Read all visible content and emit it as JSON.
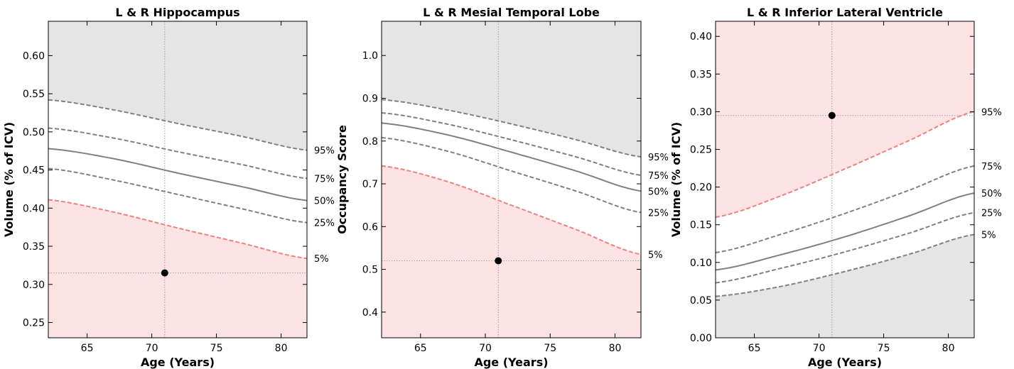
{
  "chart_data": [
    {
      "type": "line",
      "title": "L & R Hippocampus",
      "xlabel": "Age (Years)",
      "ylabel": "Volume (% of ICV)",
      "xlim": [
        62,
        82
      ],
      "ylim": [
        0.23,
        0.645
      ],
      "xticks": [
        "65",
        "70",
        "75",
        "80"
      ],
      "xtick_values": [
        65,
        70,
        75,
        80
      ],
      "yticks": [
        "0.25",
        "0.30",
        "0.35",
        "0.40",
        "0.45",
        "0.50",
        "0.55",
        "0.60"
      ],
      "ytick_values": [
        0.25,
        0.3,
        0.35,
        0.4,
        0.45,
        0.5,
        0.55,
        0.6
      ],
      "x": [
        62,
        67,
        72,
        77,
        82
      ],
      "series": [
        {
          "name": "95%",
          "values": [
            0.542,
            0.529,
            0.511,
            0.494,
            0.476
          ],
          "style": "dashed",
          "color": "#808080"
        },
        {
          "name": "75%",
          "values": [
            0.505,
            0.492,
            0.474,
            0.457,
            0.439
          ],
          "style": "dashed",
          "color": "#808080"
        },
        {
          "name": "50%",
          "values": [
            0.478,
            0.465,
            0.446,
            0.428,
            0.41
          ],
          "style": "solid",
          "color": "#808080"
        },
        {
          "name": "25%",
          "values": [
            0.452,
            0.437,
            0.418,
            0.399,
            0.381
          ],
          "style": "dashed",
          "color": "#808080"
        },
        {
          "name": "5%",
          "values": [
            0.411,
            0.395,
            0.374,
            0.354,
            0.334
          ],
          "style": "dashed",
          "color": "#f08080"
        }
      ],
      "grey_region": "above-95",
      "red_region": "below-5",
      "point": {
        "x": 71,
        "y": 0.315
      },
      "grid": false
    },
    {
      "type": "line",
      "title": "L & R Mesial Temporal Lobe",
      "xlabel": "Age (Years)",
      "ylabel": "Occupancy Score",
      "xlim": [
        62,
        82
      ],
      "ylim": [
        0.34,
        1.08
      ],
      "xticks": [
        "65",
        "70",
        "75",
        "80"
      ],
      "xtick_values": [
        65,
        70,
        75,
        80
      ],
      "yticks": [
        "0.4",
        "0.5",
        "0.6",
        "0.7",
        "0.8",
        "0.9",
        "1.0"
      ],
      "ytick_values": [
        0.4,
        0.5,
        0.6,
        0.7,
        0.8,
        0.9,
        1.0
      ],
      "x": [
        62,
        67,
        72,
        77,
        82
      ],
      "series": [
        {
          "name": "95%",
          "values": [
            0.897,
            0.873,
            0.84,
            0.803,
            0.763
          ],
          "style": "dashed",
          "color": "#808080"
        },
        {
          "name": "75%",
          "values": [
            0.866,
            0.84,
            0.803,
            0.763,
            0.72
          ],
          "style": "dashed",
          "color": "#808080"
        },
        {
          "name": "50%",
          "values": [
            0.842,
            0.815,
            0.774,
            0.73,
            0.683
          ],
          "style": "solid",
          "color": "#808080"
        },
        {
          "name": "25%",
          "values": [
            0.808,
            0.777,
            0.73,
            0.683,
            0.633
          ],
          "style": "dashed",
          "color": "#808080"
        },
        {
          "name": "5%",
          "values": [
            0.742,
            0.706,
            0.65,
            0.593,
            0.535
          ],
          "style": "dashed",
          "color": "#f08080"
        }
      ],
      "grey_region": "above-95",
      "red_region": "below-5",
      "point": {
        "x": 71,
        "y": 0.52
      },
      "grid": false
    },
    {
      "type": "line",
      "title": "L & R Inferior Lateral Ventricle",
      "xlabel": "Age (Years)",
      "ylabel": "Volume (% of ICV)",
      "xlim": [
        62,
        82
      ],
      "ylim": [
        0.0,
        0.42
      ],
      "xticks": [
        "65",
        "70",
        "75",
        "80"
      ],
      "xtick_values": [
        65,
        70,
        75,
        80
      ],
      "yticks": [
        "0.00",
        "0.05",
        "0.10",
        "0.15",
        "0.20",
        "0.25",
        "0.30",
        "0.35",
        "0.40"
      ],
      "ytick_values": [
        0.0,
        0.05,
        0.1,
        0.15,
        0.2,
        0.25,
        0.3,
        0.35,
        0.4
      ],
      "x": [
        62,
        67,
        72,
        77,
        82
      ],
      "series": [
        {
          "name": "95%",
          "values": [
            0.16,
            0.188,
            0.224,
            0.262,
            0.3
          ],
          "style": "dashed",
          "color": "#f08080"
        },
        {
          "name": "75%",
          "values": [
            0.113,
            0.137,
            0.165,
            0.196,
            0.228
          ],
          "style": "dashed",
          "color": "#808080"
        },
        {
          "name": "50%",
          "values": [
            0.09,
            0.11,
            0.134,
            0.162,
            0.192
          ],
          "style": "solid",
          "color": "#808080"
        },
        {
          "name": "25%",
          "values": [
            0.073,
            0.092,
            0.114,
            0.139,
            0.166
          ],
          "style": "dashed",
          "color": "#808080"
        },
        {
          "name": "5%",
          "values": [
            0.055,
            0.068,
            0.088,
            0.111,
            0.137
          ],
          "style": "dashed",
          "color": "#808080"
        }
      ],
      "grey_region": "below-5",
      "red_region": "above-95",
      "point": {
        "x": 71,
        "y": 0.295
      },
      "grid": false
    }
  ],
  "colors": {
    "grey_fill": "#e5e5e5",
    "red_fill": "#fde3e4",
    "percentile_line": "#808080",
    "threshold_line": "#f08080",
    "point": "#000000"
  }
}
